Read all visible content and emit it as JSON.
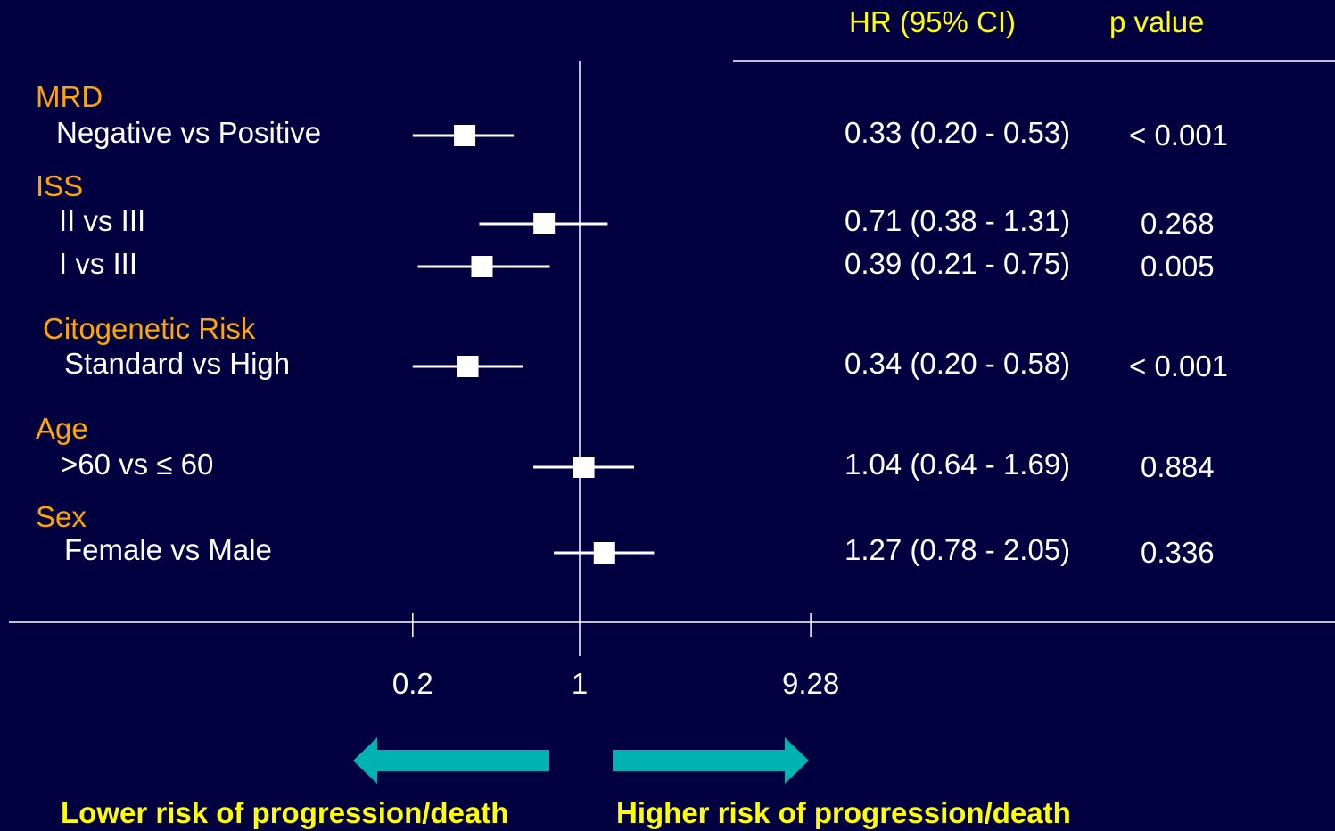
{
  "header": {
    "hr_label": "HR (95% CI)",
    "p_label": "p value"
  },
  "footer": {
    "lower_label": "Lower risk of progression/death",
    "higher_label": "Higher risk of progression/death",
    "arrow_color": "#00B3B3"
  },
  "colors": {
    "background": "#000040",
    "group_label": "#FFA500",
    "header_text": "#FFFF00",
    "marker": "#FFFFFF"
  },
  "chart_data": {
    "type": "forest",
    "x_scale": "log",
    "reference_value": 1,
    "x_ticks": [
      {
        "value": 0.2,
        "label": "0.2"
      },
      {
        "value": 1,
        "label": "1"
      },
      {
        "value": 9.28,
        "label": "9.28"
      }
    ],
    "groups": [
      {
        "label": "MRD",
        "rows": [
          {
            "label": "Negative vs Positive",
            "hr": 0.33,
            "lo": 0.2,
            "hi": 0.53,
            "hr_text": "0.33 (0.20 - 0.53)",
            "p_text": "< 0.001"
          }
        ]
      },
      {
        "label": "ISS",
        "rows": [
          {
            "label": "II vs III",
            "hr": 0.71,
            "lo": 0.38,
            "hi": 1.31,
            "hr_text": "0.71 (0.38 - 1.31)",
            "p_text": "0.268"
          },
          {
            "label": "I vs III",
            "hr": 0.39,
            "lo": 0.21,
            "hi": 0.75,
            "hr_text": "0.39 (0.21 - 0.75)",
            "p_text": "0.005"
          }
        ]
      },
      {
        "label": "Citogenetic Risk",
        "rows": [
          {
            "label": "Standard vs High",
            "hr": 0.34,
            "lo": 0.2,
            "hi": 0.58,
            "hr_text": "0.34 (0.20 - 0.58)",
            "p_text": "< 0.001"
          }
        ]
      },
      {
        "label": "Age",
        "rows": [
          {
            "label": ">60 vs ≤ 60",
            "hr": 1.04,
            "lo": 0.64,
            "hi": 1.69,
            "hr_text": "1.04 (0.64 - 1.69)",
            "p_text": "0.884"
          }
        ]
      },
      {
        "label": "Sex",
        "rows": [
          {
            "label": "Female vs Male",
            "hr": 1.27,
            "lo": 0.78,
            "hi": 2.05,
            "hr_text": "1.27 (0.78 - 2.05)",
            "p_text": "0.336"
          }
        ]
      }
    ]
  }
}
